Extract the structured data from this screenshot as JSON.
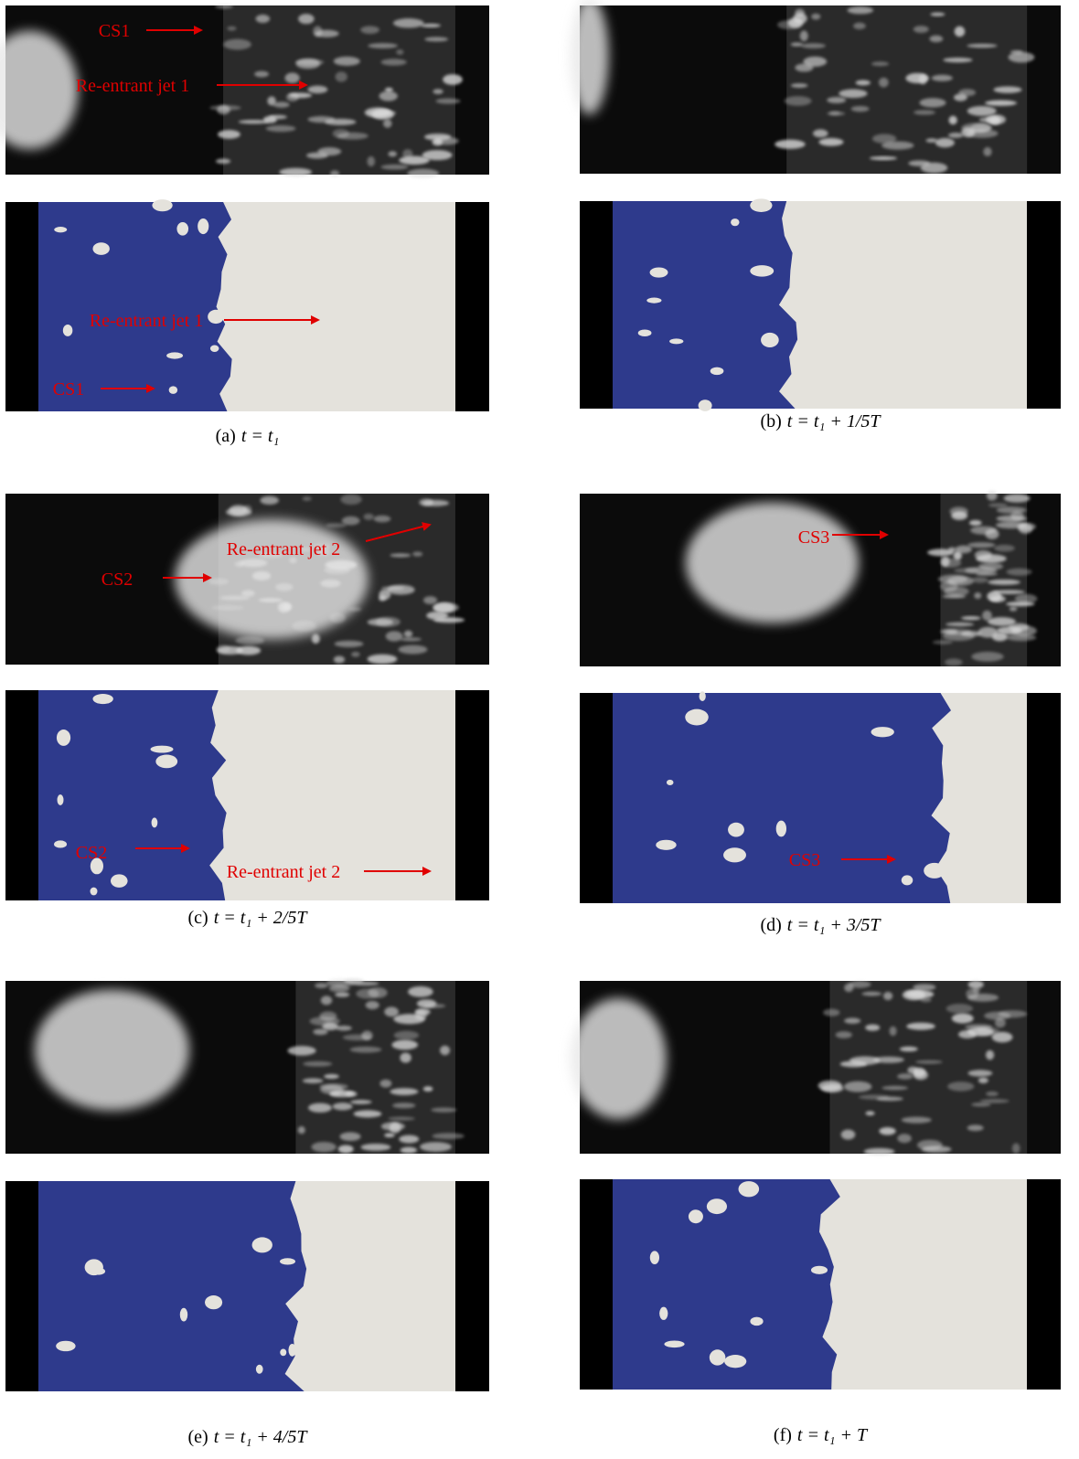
{
  "panels": [
    {
      "label": "(a)",
      "expr": "t = t₁",
      "photo_annotations": [
        "CS1",
        "Re-entrant jet 1"
      ],
      "sim_annotations": [
        "Re-entrant jet 1",
        "CS1"
      ]
    },
    {
      "label": "(b)",
      "expr": "t = t₁ + 1/5T",
      "photo_annotations": [],
      "sim_annotations": []
    },
    {
      "label": "(c)",
      "expr": "t = t₁ + 2/5T",
      "photo_annotations": [
        "CS2",
        "Re-entrant jet 2"
      ],
      "sim_annotations": [
        "CS2",
        "Re-entrant jet 2"
      ]
    },
    {
      "label": "(d)",
      "expr": "t = t₁ + 3/5T",
      "photo_annotations": [
        "CS3"
      ],
      "sim_annotations": [
        "CS3"
      ]
    },
    {
      "label": "(e)",
      "expr": "t = t₁ + 4/5T",
      "photo_annotations": [],
      "sim_annotations": []
    },
    {
      "label": "(f)",
      "expr": "t = t₁ + T",
      "photo_annotations": [],
      "sim_annotations": []
    }
  ]
}
